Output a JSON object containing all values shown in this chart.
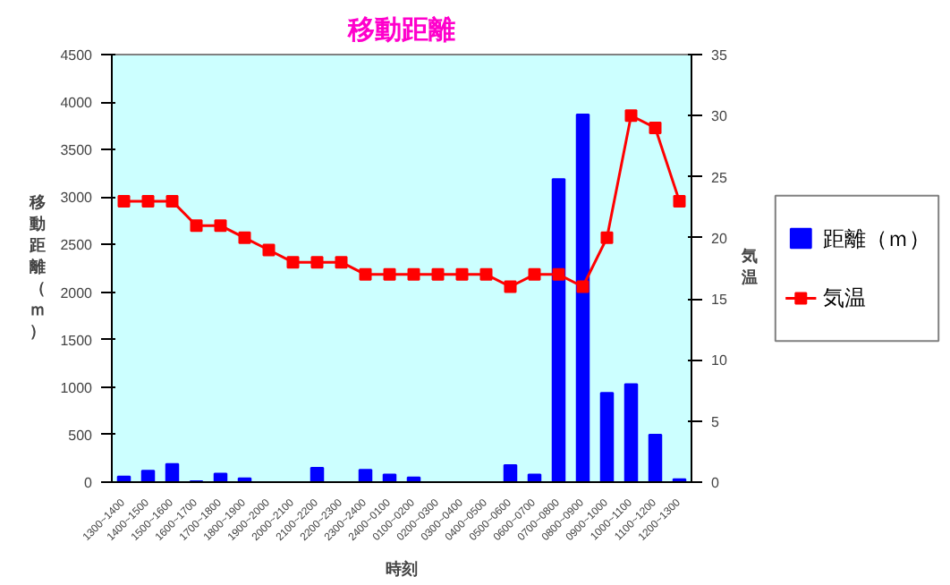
{
  "chart_data": {
    "type": "bar",
    "title": "移動距離",
    "xlabel": "時刻",
    "ylabel": "移動距離（ｍ）",
    "y2label": "気温",
    "categories": [
      "1300~1400",
      "1400~1500",
      "1500~1600",
      "1600~1700",
      "1700~1800",
      "1800~1900",
      "1900~2000",
      "2000~2100",
      "2100~2200",
      "2200~2300",
      "2300~2400",
      "2400~0100",
      "0100~0200",
      "0200~0300",
      "0300~0400",
      "0400~0500",
      "0500~0600",
      "0600~0700",
      "0700~0800",
      "0800~0900",
      "0900~1000",
      "1000~1100",
      "1100~1200",
      "1200~1300"
    ],
    "series": [
      {
        "name": "距離（ｍ）",
        "color": "#0000ff",
        "values": [
          60,
          120,
          190,
          10,
          90,
          40,
          0,
          0,
          150,
          0,
          130,
          80,
          50,
          0,
          0,
          0,
          180,
          80,
          3190,
          3870,
          940,
          1030,
          500,
          30
        ]
      },
      {
        "name": "気温",
        "type": "line",
        "axis": "y2",
        "color": "#ff0000",
        "marker": "square",
        "values": [
          23,
          23,
          23,
          21,
          21,
          20,
          19,
          18,
          18,
          18,
          17,
          17,
          17,
          17,
          17,
          17,
          16,
          17,
          17,
          16,
          20,
          30,
          29,
          23
        ]
      }
    ],
    "ylim": [
      0,
      4500
    ],
    "yticks": [
      0,
      500,
      1000,
      1500,
      2000,
      2500,
      3000,
      3500,
      4000,
      4500
    ],
    "y2lim": [
      0,
      35
    ],
    "y2ticks": [
      0,
      5,
      10,
      15,
      20,
      25,
      30,
      35
    ],
    "grid": false,
    "legend": "right"
  }
}
